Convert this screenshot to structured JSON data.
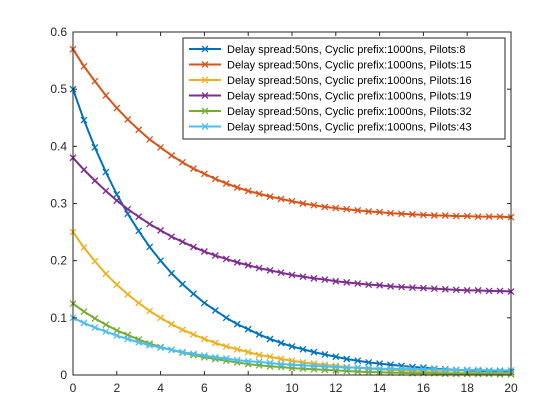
{
  "chart_data": {
    "type": "line",
    "title": "",
    "xlabel": "",
    "ylabel": "",
    "xlim": [
      0,
      20
    ],
    "ylim": [
      0,
      0.6
    ],
    "xticks": [
      0,
      2,
      4,
      6,
      8,
      10,
      12,
      14,
      16,
      18,
      20
    ],
    "xtick_labels": [
      "0",
      "2",
      "4",
      "6",
      "8",
      "10",
      "12",
      "14",
      "16",
      "18",
      "20"
    ],
    "yticks": [
      0,
      0.1,
      0.2,
      0.3,
      0.4,
      0.5,
      0.6
    ],
    "ytick_labels": [
      "0",
      "0.1",
      "0.2",
      "0.3",
      "0.4",
      "0.5",
      "0.6"
    ],
    "grid": false,
    "legend_position": "top-right",
    "x": [
      0,
      0.5,
      1,
      1.5,
      2,
      2.5,
      3,
      3.5,
      4,
      4.5,
      5,
      5.5,
      6,
      6.5,
      7,
      7.5,
      8,
      8.5,
      9,
      9.5,
      10,
      10.5,
      11,
      11.5,
      12,
      12.5,
      13,
      13.5,
      14,
      14.5,
      15,
      15.5,
      16,
      16.5,
      17,
      17.5,
      18,
      18.5,
      19,
      19.5,
      20
    ],
    "series": [
      {
        "name": "Delay spread:50ns, Cyclic prefix:1000ns, Pilots:8",
        "color": "#0072bd",
        "values": [
          0.5,
          0.446,
          0.398,
          0.355,
          0.316,
          0.282,
          0.252,
          0.224,
          0.2,
          0.178,
          0.159,
          0.142,
          0.126,
          0.113,
          0.1,
          0.089,
          0.08,
          0.071,
          0.063,
          0.056,
          0.05,
          0.045,
          0.04,
          0.036,
          0.032,
          0.028,
          0.025,
          0.022,
          0.02,
          0.018,
          0.016,
          0.014,
          0.013,
          0.011,
          0.01,
          0.009,
          0.008,
          0.007,
          0.006,
          0.006,
          0.005
        ]
      },
      {
        "name": "Delay spread:50ns, Cyclic prefix:1000ns, Pilots:15",
        "color": "#d95319",
        "values": [
          0.57,
          0.54,
          0.514,
          0.489,
          0.467,
          0.447,
          0.429,
          0.412,
          0.398,
          0.384,
          0.372,
          0.361,
          0.352,
          0.343,
          0.335,
          0.328,
          0.322,
          0.317,
          0.312,
          0.308,
          0.304,
          0.3,
          0.297,
          0.294,
          0.292,
          0.29,
          0.288,
          0.286,
          0.285,
          0.283,
          0.282,
          0.281,
          0.28,
          0.279,
          0.279,
          0.278,
          0.278,
          0.277,
          0.277,
          0.277,
          0.276
        ]
      },
      {
        "name": "Delay spread:50ns, Cyclic prefix:1000ns, Pilots:16",
        "color": "#edb120",
        "values": [
          0.25,
          0.223,
          0.199,
          0.177,
          0.158,
          0.141,
          0.126,
          0.112,
          0.1,
          0.089,
          0.079,
          0.071,
          0.063,
          0.056,
          0.05,
          0.045,
          0.04,
          0.035,
          0.032,
          0.028,
          0.025,
          0.022,
          0.02,
          0.018,
          0.016,
          0.014,
          0.013,
          0.011,
          0.01,
          0.009,
          0.008,
          0.007,
          0.006,
          0.006,
          0.005,
          0.004,
          0.004,
          0.004,
          0.003,
          0.003,
          0.003
        ]
      },
      {
        "name": "Delay spread:50ns, Cyclic prefix:1000ns, Pilots:19",
        "color": "#7e2f8e",
        "values": [
          0.38,
          0.359,
          0.34,
          0.322,
          0.305,
          0.29,
          0.277,
          0.264,
          0.253,
          0.242,
          0.233,
          0.224,
          0.216,
          0.209,
          0.203,
          0.197,
          0.192,
          0.187,
          0.183,
          0.179,
          0.175,
          0.172,
          0.169,
          0.167,
          0.164,
          0.162,
          0.16,
          0.158,
          0.157,
          0.155,
          0.154,
          0.153,
          0.152,
          0.151,
          0.15,
          0.149,
          0.148,
          0.148,
          0.147,
          0.147,
          0.146
        ]
      },
      {
        "name": "Delay spread:50ns, Cyclic prefix:1000ns, Pilots:32",
        "color": "#77ac30",
        "values": [
          0.125,
          0.111,
          0.099,
          0.088,
          0.078,
          0.07,
          0.062,
          0.055,
          0.049,
          0.044,
          0.039,
          0.035,
          0.031,
          0.028,
          0.025,
          0.022,
          0.019,
          0.017,
          0.015,
          0.014,
          0.012,
          0.011,
          0.01,
          0.009,
          0.008,
          0.007,
          0.006,
          0.005,
          0.005,
          0.004,
          0.004,
          0.003,
          0.003,
          0.003,
          0.002,
          0.002,
          0.002,
          0.002,
          0.002,
          0.001,
          0.001
        ]
      },
      {
        "name": "Delay spread:50ns, Cyclic prefix:1000ns, Pilots:43",
        "color": "#4dbeee",
        "values": [
          0.1,
          0.091,
          0.083,
          0.076,
          0.069,
          0.063,
          0.057,
          0.052,
          0.048,
          0.044,
          0.04,
          0.037,
          0.034,
          0.031,
          0.029,
          0.026,
          0.024,
          0.023,
          0.021,
          0.019,
          0.018,
          0.017,
          0.016,
          0.015,
          0.014,
          0.013,
          0.013,
          0.012,
          0.011,
          0.011,
          0.011,
          0.01,
          0.01,
          0.01,
          0.009,
          0.009,
          0.009,
          0.009,
          0.008,
          0.008,
          0.008
        ]
      }
    ]
  }
}
